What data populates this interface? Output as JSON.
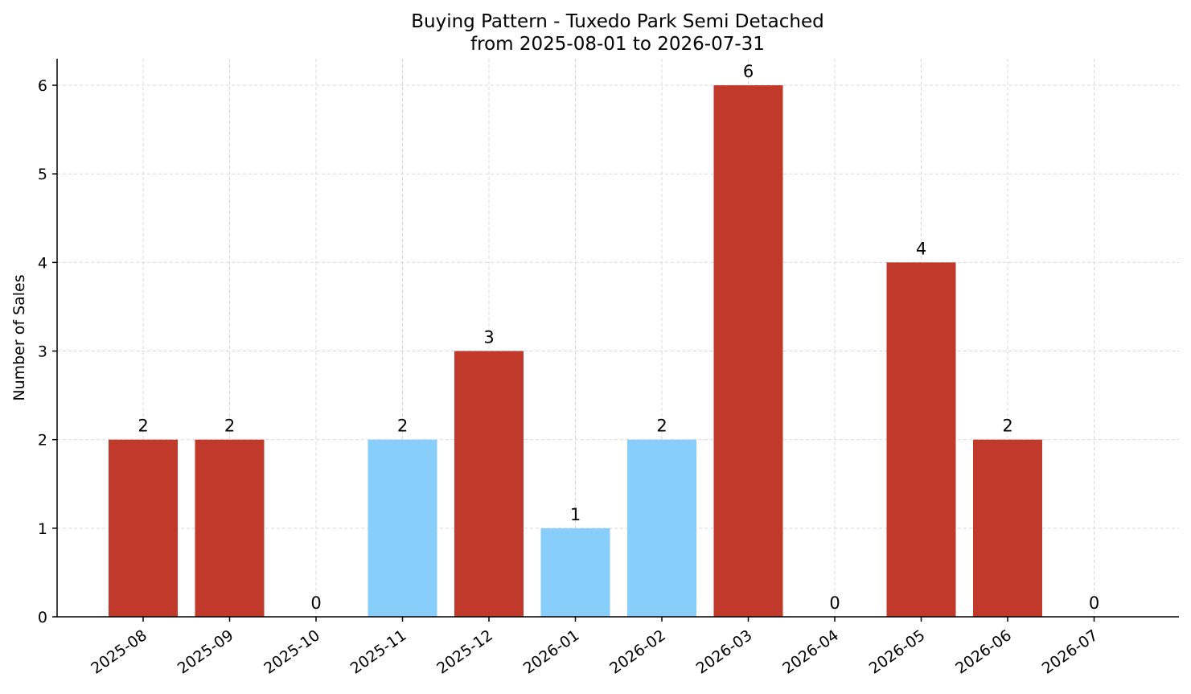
{
  "chart_data": {
    "type": "bar",
    "title": "Buying Pattern - Tuxedo Park Semi Detached",
    "subtitle": "from 2025-08-01 to 2026-07-31",
    "xlabel": "",
    "ylabel": "Number of Sales",
    "ylim": [
      0,
      6.3
    ],
    "yticks": [
      0,
      1,
      2,
      3,
      4,
      5,
      6
    ],
    "grid": true,
    "categories": [
      "2025-08",
      "2025-09",
      "2025-10",
      "2025-11",
      "2025-12",
      "2026-01",
      "2026-02",
      "2026-03",
      "2026-04",
      "2026-05",
      "2026-06",
      "2026-07"
    ],
    "values": [
      2,
      2,
      0,
      2,
      3,
      1,
      2,
      6,
      0,
      4,
      2,
      0
    ],
    "bar_colors": [
      "#c0392b",
      "#c0392b",
      "#c0392b",
      "#87cefa",
      "#c0392b",
      "#87cefa",
      "#87cefa",
      "#c0392b",
      "#c0392b",
      "#c0392b",
      "#c0392b",
      "#c0392b"
    ],
    "colors": {
      "high": "#c0392b",
      "low": "#87cefa"
    }
  }
}
